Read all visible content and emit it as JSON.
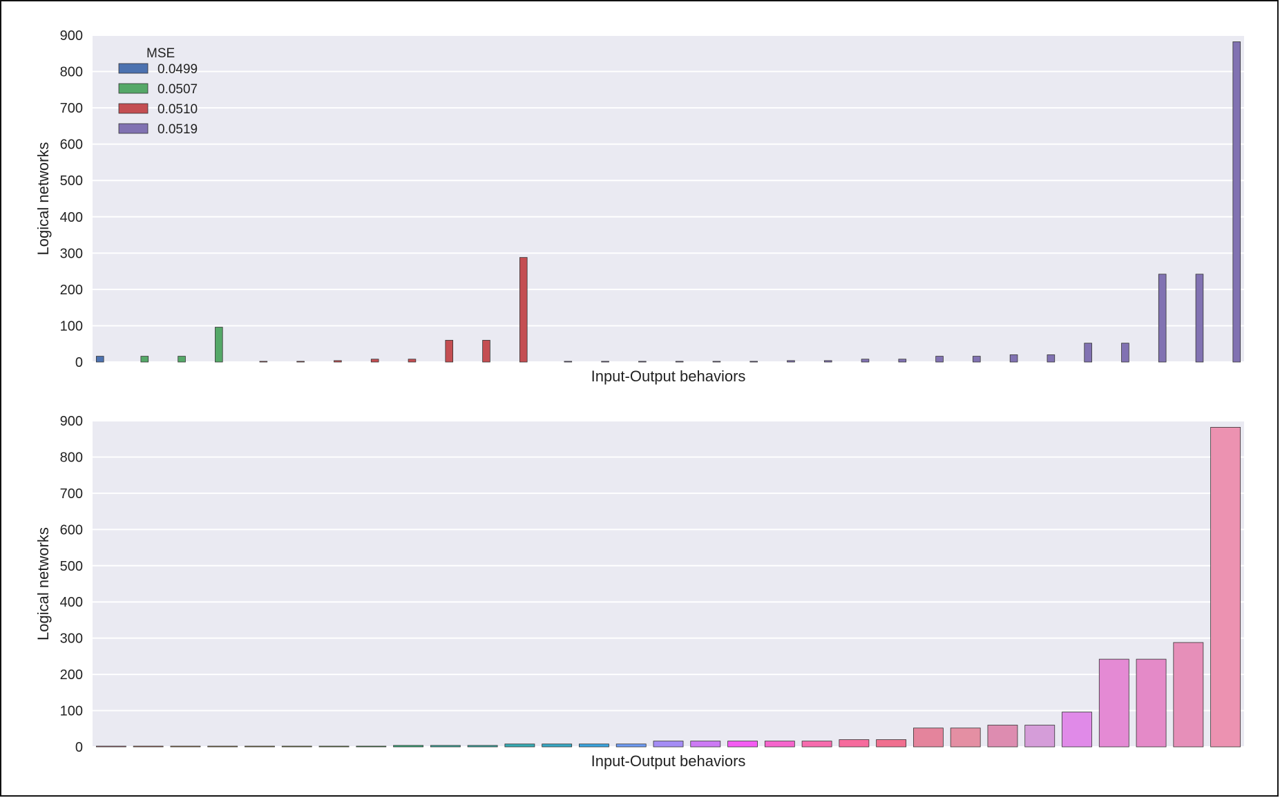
{
  "chart_data": [
    {
      "type": "bar",
      "xlabel": "Input-Output behaviors",
      "ylabel": "Logical networks",
      "ylim": [
        0,
        900
      ],
      "yticks": [
        0,
        100,
        200,
        300,
        400,
        500,
        600,
        700,
        800,
        900
      ],
      "grid": true,
      "legend": {
        "title": "MSE",
        "position": "top-left"
      },
      "grouped": true,
      "group_count": 31,
      "series": [
        {
          "name": "0.0499",
          "color": "#4c72b0",
          "points": [
            {
              "x": 0,
              "y": 16
            }
          ]
        },
        {
          "name": "0.0507",
          "color": "#55a868",
          "points": [
            {
              "x": 1,
              "y": 16
            },
            {
              "x": 2,
              "y": 16
            },
            {
              "x": 3,
              "y": 96
            }
          ]
        },
        {
          "name": "0.0510",
          "color": "#c44e52",
          "points": [
            {
              "x": 4,
              "y": 2
            },
            {
              "x": 5,
              "y": 2
            },
            {
              "x": 6,
              "y": 4
            },
            {
              "x": 7,
              "y": 8
            },
            {
              "x": 8,
              "y": 8
            },
            {
              "x": 9,
              "y": 60
            },
            {
              "x": 10,
              "y": 60
            },
            {
              "x": 11,
              "y": 288
            }
          ]
        },
        {
          "name": "0.0519",
          "color": "#8172b2",
          "points": [
            {
              "x": 12,
              "y": 2
            },
            {
              "x": 13,
              "y": 2
            },
            {
              "x": 14,
              "y": 2
            },
            {
              "x": 15,
              "y": 2
            },
            {
              "x": 16,
              "y": 2
            },
            {
              "x": 17,
              "y": 2
            },
            {
              "x": 18,
              "y": 4
            },
            {
              "x": 19,
              "y": 4
            },
            {
              "x": 20,
              "y": 8
            },
            {
              "x": 21,
              "y": 8
            },
            {
              "x": 22,
              "y": 16
            },
            {
              "x": 23,
              "y": 16
            },
            {
              "x": 24,
              "y": 20
            },
            {
              "x": 25,
              "y": 20
            },
            {
              "x": 26,
              "y": 52
            },
            {
              "x": 27,
              "y": 52
            },
            {
              "x": 28,
              "y": 242
            },
            {
              "x": 29,
              "y": 242
            },
            {
              "x": 30,
              "y": 882
            }
          ]
        }
      ]
    },
    {
      "type": "bar",
      "xlabel": "Input-Output behaviors",
      "ylabel": "Logical networks",
      "ylim": [
        0,
        900
      ],
      "yticks": [
        0,
        100,
        200,
        300,
        400,
        500,
        600,
        700,
        800,
        900
      ],
      "grid": true,
      "values": [
        2,
        2,
        2,
        2,
        2,
        2,
        2,
        2,
        4,
        4,
        4,
        8,
        8,
        8,
        8,
        16,
        16,
        16,
        16,
        16,
        20,
        20,
        52,
        52,
        60,
        60,
        96,
        242,
        242,
        288,
        882
      ],
      "colors": [
        "#f77189",
        "#f7754f",
        "#dc8932",
        "#c39532",
        "#ae9d31",
        "#97a431",
        "#77ab31",
        "#31b33e",
        "#33b07a",
        "#35ad9c",
        "#36ada4",
        "#37abb4",
        "#38a9c5",
        "#3aa5df",
        "#6e9bf4",
        "#a48cf4",
        "#cc7af4",
        "#f45cf2",
        "#f565cc",
        "#f66bad",
        "#f66b9d",
        "#f06f8f",
        "#e4849c",
        "#e48fa3",
        "#dd8cb0",
        "#d59dd9",
        "#e08ae8",
        "#e48ad4",
        "#e48ac8",
        "#e68fb9",
        "#ec92b1"
      ]
    }
  ]
}
